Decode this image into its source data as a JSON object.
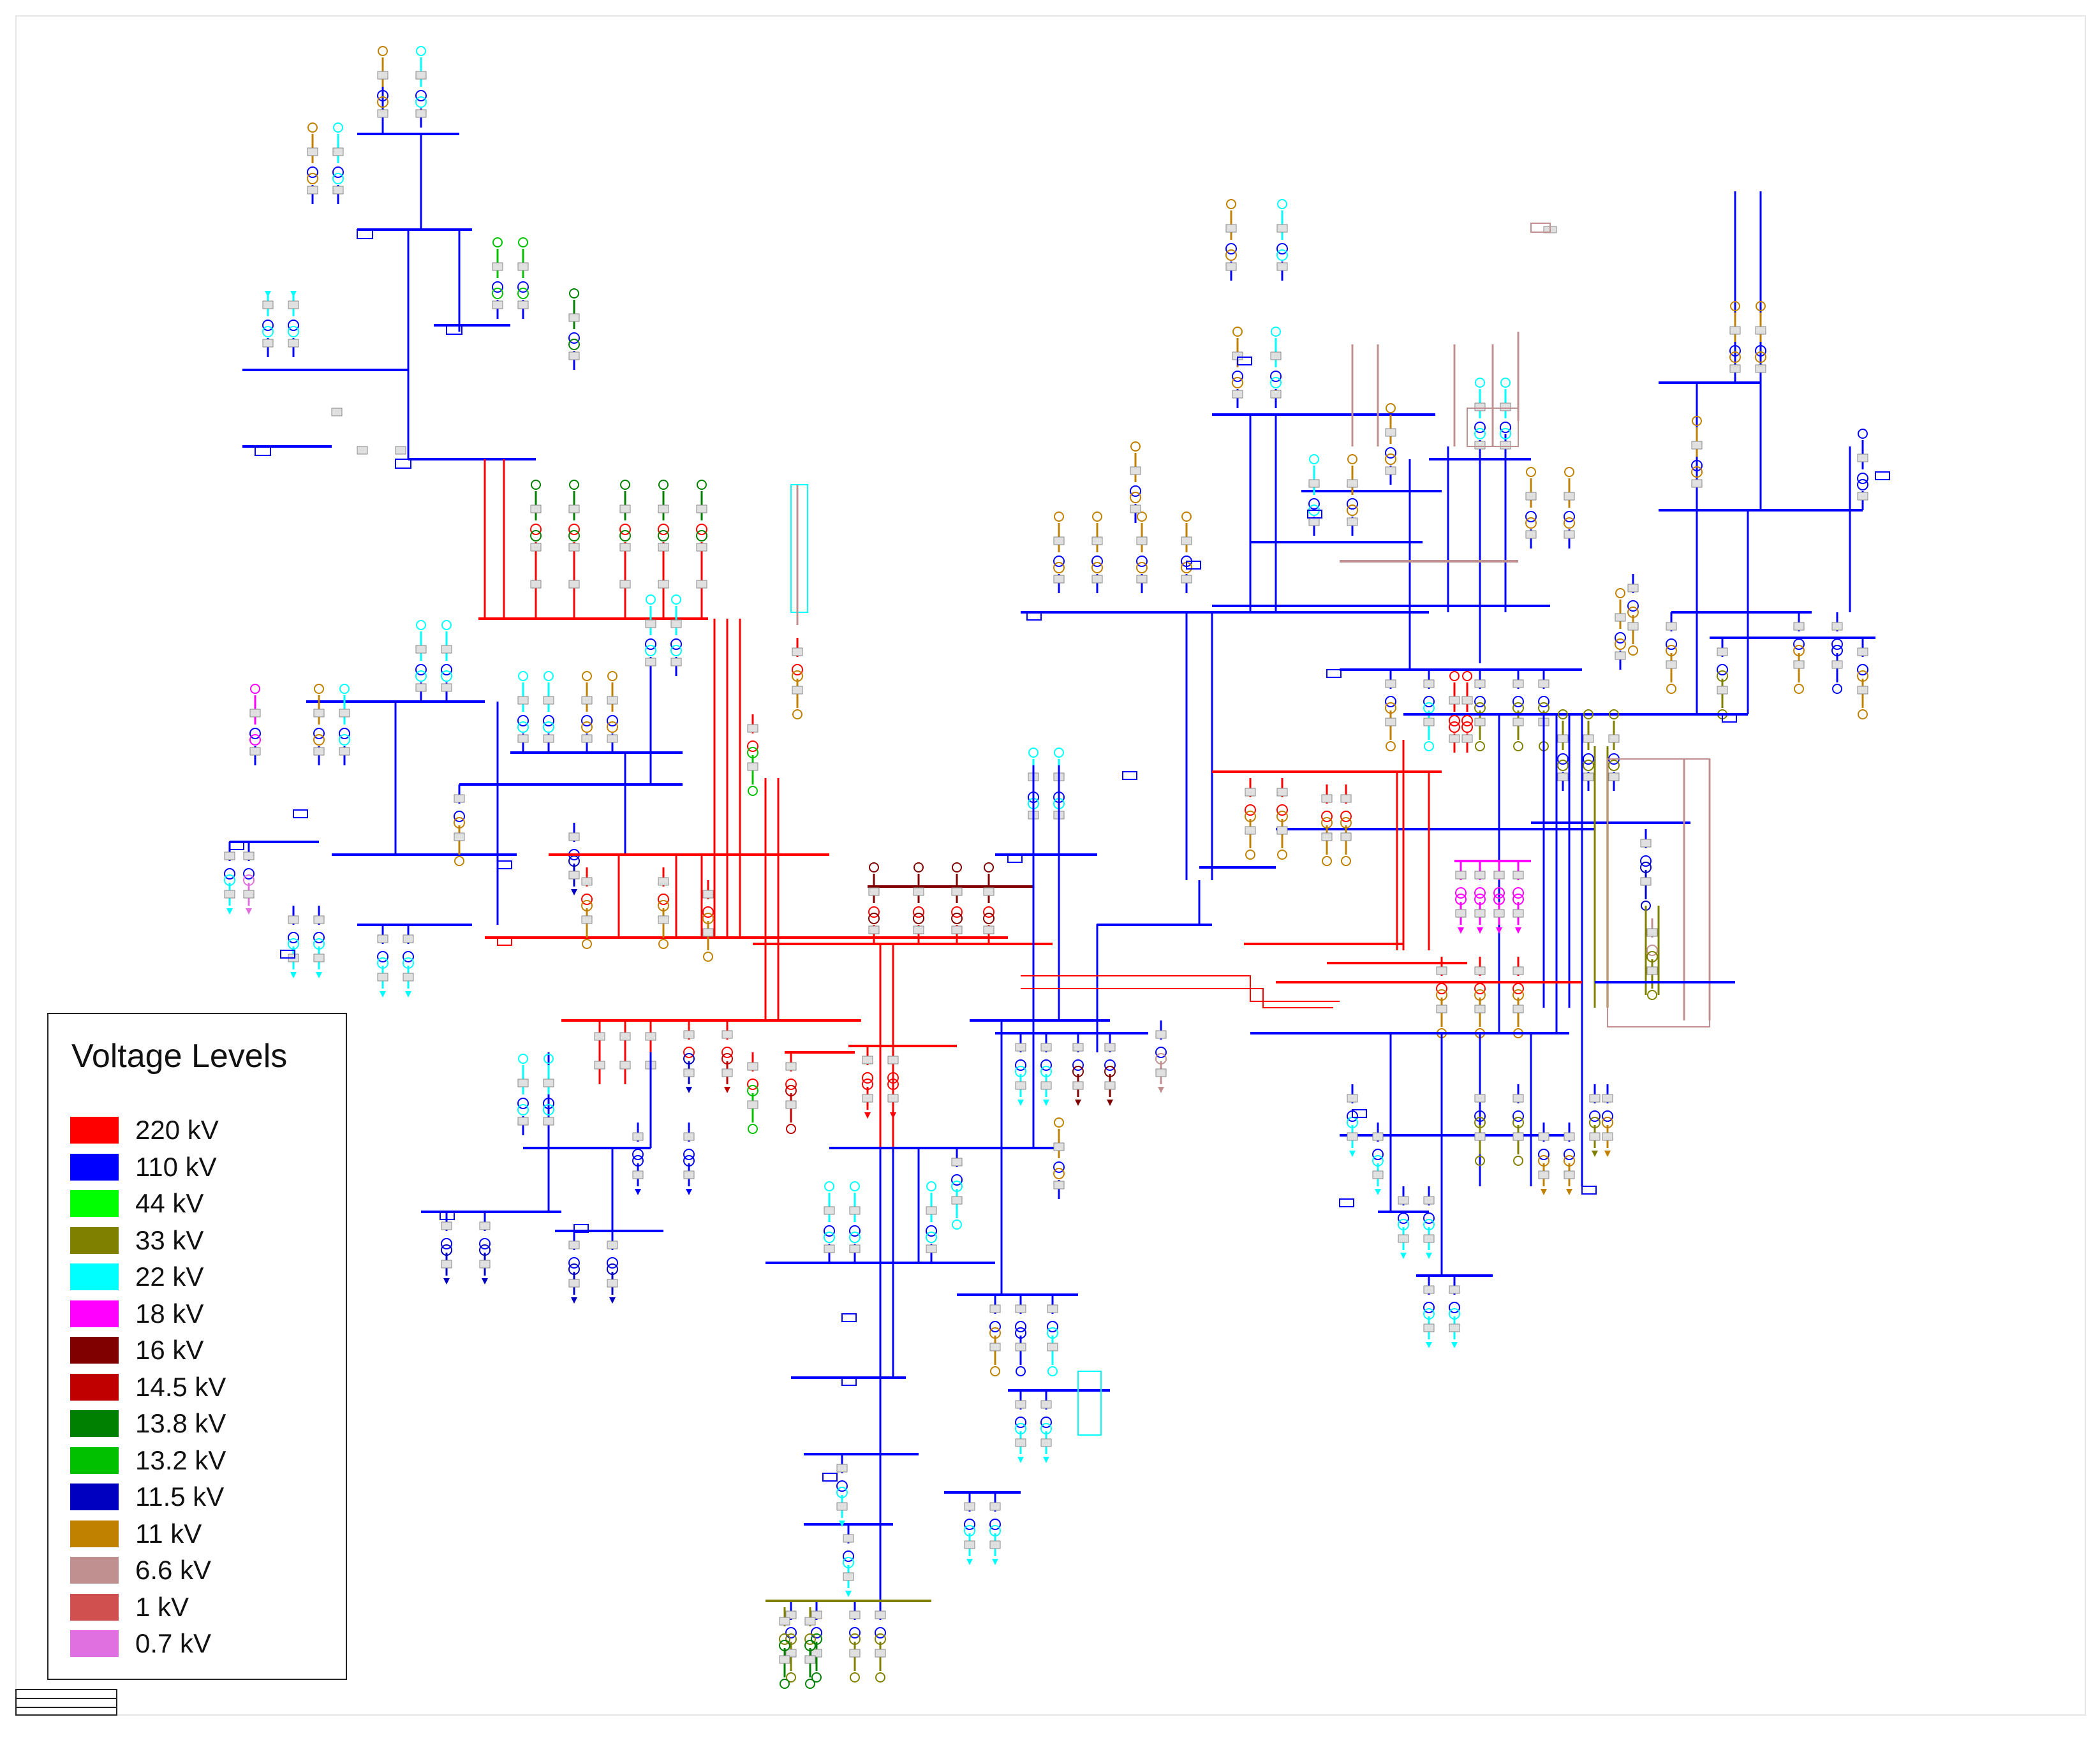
{
  "legend": {
    "title": "Voltage Levels",
    "items": [
      {
        "label": "220 kV",
        "color": "#ff0000"
      },
      {
        "label": "110 kV",
        "color": "#0000ff"
      },
      {
        "label": "44 kV",
        "color": "#00ff00"
      },
      {
        "label": "33 kV",
        "color": "#808000"
      },
      {
        "label": "22 kV",
        "color": "#00ffff"
      },
      {
        "label": "18 kV",
        "color": "#ff00ff"
      },
      {
        "label": "16 kV",
        "color": "#800000"
      },
      {
        "label": "14.5 kV",
        "color": "#c00000"
      },
      {
        "label": "13.8 kV",
        "color": "#008000"
      },
      {
        "label": "13.2 kV",
        "color": "#00c000"
      },
      {
        "label": "11.5 kV",
        "color": "#0000c0"
      },
      {
        "label": "11 kV",
        "color": "#c08000"
      },
      {
        "label": "6.6 kV",
        "color": "#c09090"
      },
      {
        "label": "1 kV",
        "color": "#d05050"
      },
      {
        "label": "0.7 kV",
        "color": "#e070e0"
      }
    ]
  },
  "diagram": {
    "element_colors": {
      "busbar_box": "#e0e0e0",
      "box_outline": "#888888"
    }
  }
}
